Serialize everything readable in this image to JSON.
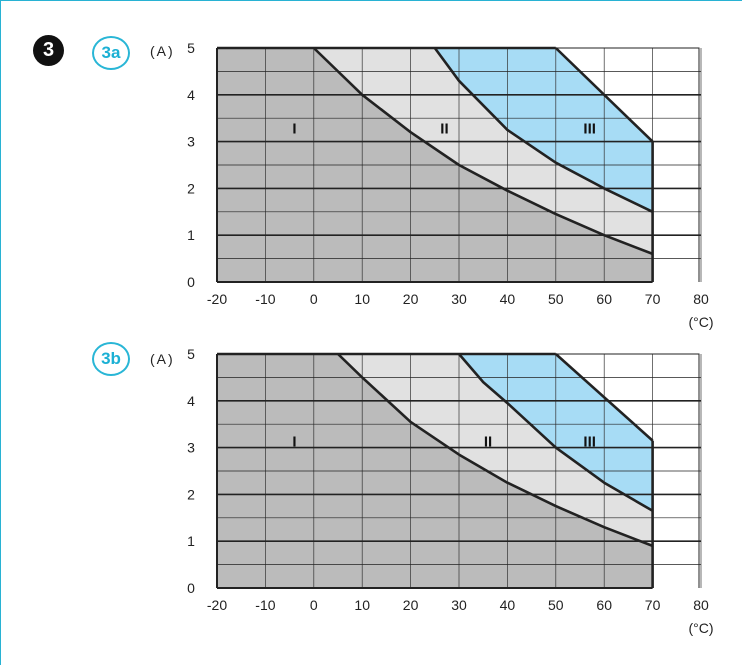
{
  "step_number": "3",
  "colors": {
    "zone_I": "#bbbbbb",
    "zone_II": "#e1e1e1",
    "zone_III": "#a7dcf5",
    "grid": "#222222",
    "accent": "#29b6d6"
  },
  "chart_data": [
    {
      "type": "area",
      "badge": "3a",
      "ylabel": "(A)",
      "xlabel": "(°C)",
      "xlim": [
        -20,
        80
      ],
      "ylim": [
        0,
        5
      ],
      "x_ticks": [
        "-20",
        "-10",
        "0",
        "10",
        "20",
        "30",
        "40",
        "50",
        "60",
        "70",
        "80"
      ],
      "y_ticks": [
        "0",
        "1",
        "2",
        "3",
        "4",
        "5"
      ],
      "grid": true,
      "zones": [
        {
          "label": "I",
          "label_at": [
            -4,
            3.3
          ],
          "boundary": [
            [
              -20,
              5
            ],
            [
              0,
              5
            ],
            [
              10,
              4
            ],
            [
              20,
              3.2
            ],
            [
              30,
              2.5
            ],
            [
              40,
              1.95
            ],
            [
              50,
              1.45
            ],
            [
              60,
              1.0
            ],
            [
              70,
              0.6
            ]
          ]
        },
        {
          "label": "II",
          "label_at": [
            27,
            3.3
          ],
          "boundary": [
            [
              -20,
              5
            ],
            [
              25,
              5
            ],
            [
              30,
              4.3
            ],
            [
              40,
              3.25
            ],
            [
              50,
              2.55
            ],
            [
              60,
              2.0
            ],
            [
              70,
              1.5
            ]
          ]
        },
        {
          "label": "III",
          "label_at": [
            57,
            3.3
          ],
          "boundary": [
            [
              -20,
              5
            ],
            [
              50,
              5
            ],
            [
              70,
              3
            ]
          ]
        }
      ]
    },
    {
      "type": "area",
      "badge": "3b",
      "ylabel": "(A)",
      "xlabel": "(°C)",
      "xlim": [
        -20,
        80
      ],
      "ylim": [
        0,
        5
      ],
      "x_ticks": [
        "-20",
        "-10",
        "0",
        "10",
        "20",
        "30",
        "40",
        "50",
        "60",
        "70",
        "80"
      ],
      "y_ticks": [
        "0",
        "1",
        "2",
        "3",
        "4",
        "5"
      ],
      "grid": true,
      "zones": [
        {
          "label": "I",
          "label_at": [
            -4,
            3.15
          ],
          "boundary": [
            [
              -20,
              5
            ],
            [
              5,
              5
            ],
            [
              10,
              4.5
            ],
            [
              20,
              3.55
            ],
            [
              30,
              2.85
            ],
            [
              40,
              2.25
            ],
            [
              50,
              1.75
            ],
            [
              60,
              1.3
            ],
            [
              70,
              0.9
            ]
          ]
        },
        {
          "label": "II",
          "label_at": [
            36,
            3.15
          ],
          "boundary": [
            [
              -20,
              5
            ],
            [
              30,
              5
            ],
            [
              35,
              4.4
            ],
            [
              40,
              3.95
            ],
            [
              50,
              3.0
            ],
            [
              60,
              2.25
            ],
            [
              70,
              1.65
            ]
          ]
        },
        {
          "label": "III",
          "label_at": [
            57,
            3.15
          ],
          "boundary": [
            [
              -20,
              5
            ],
            [
              50,
              5
            ],
            [
              70,
              3.15
            ]
          ]
        }
      ]
    }
  ]
}
